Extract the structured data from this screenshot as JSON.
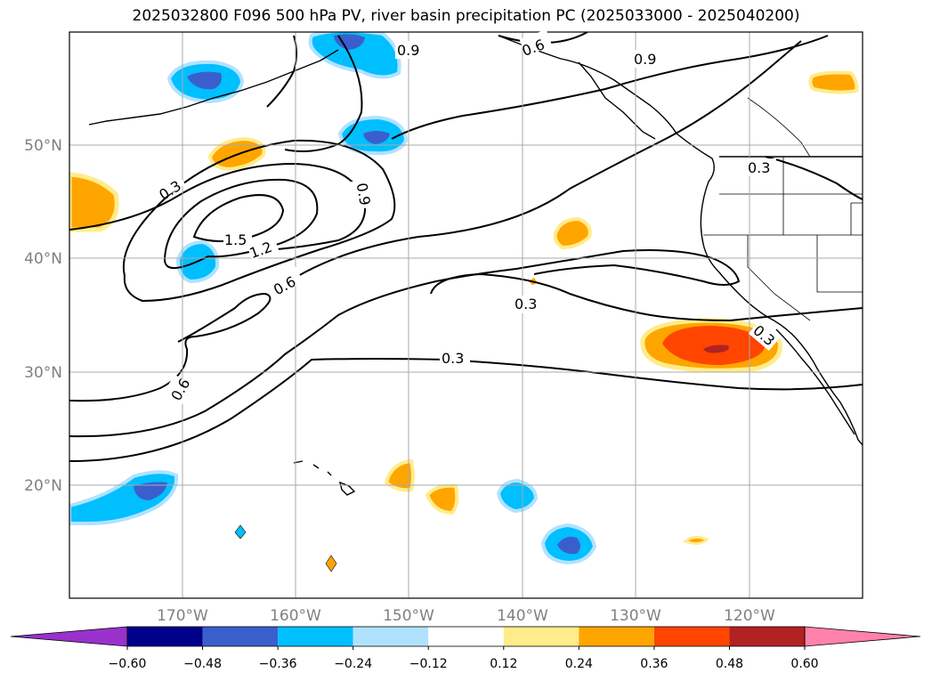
{
  "title": "2025032800 F096 500 hPa PV, river basin precipitation PC (2025033000 - 2025040200)",
  "lat_labels": [
    "50°N",
    "40°N",
    "30°N",
    "20°N"
  ],
  "lon_labels": [
    "170°W",
    "160°W",
    "150°W",
    "140°W",
    "130°W",
    "120°W"
  ],
  "contour_labels": [
    "0.3",
    "0.6",
    "0.9",
    "1.2",
    "1.5"
  ],
  "colorbar": {
    "tick_labels": [
      "−0.60",
      "−0.48",
      "−0.36",
      "−0.24",
      "−0.12",
      "0.12",
      "0.24",
      "0.36",
      "0.48",
      "0.60"
    ],
    "colors": [
      "#9932cc",
      "#00008b",
      "#3a5fcd",
      "#00bfff",
      "#b0e2ff",
      "#ffffff",
      "#ffec8b",
      "#ffa500",
      "#ff4500",
      "#b22222",
      "#ff82ab"
    ]
  },
  "colors": {
    "contour": "#000000",
    "coast": "#000000",
    "grid": "#a9a9a9"
  }
}
